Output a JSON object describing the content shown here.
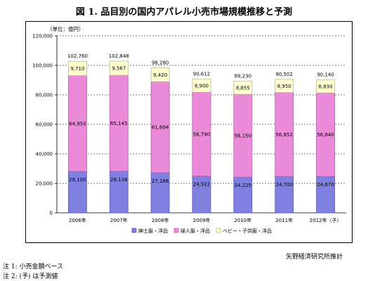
{
  "figure_title": "図 1.  品目別の国内アパレル小売市場規模推移と予測",
  "unit_label": "（単位：億円）",
  "source": "矢野経済研究所推計",
  "notes": [
    "注 1:  小売金額ベース",
    "注 2:  (予) は予測値"
  ],
  "colors": {
    "mens": "#8080e0",
    "womens": "#ea8ad8",
    "kids": "#ffffd0",
    "mens_dark": "#5a5ab8",
    "womens_dark": "#b85aa6",
    "kids_dark": "#b8b890"
  },
  "chart_data": {
    "type": "bar",
    "stacked": true,
    "categories": [
      "2006年",
      "2007年",
      "2008年",
      "2009年",
      "2010年",
      "2011年",
      "2012年（予）"
    ],
    "series": [
      {
        "name": "紳士服・洋品",
        "values": [
          28100,
          28136,
          27166,
          24922,
          24225,
          24700,
          24670
        ]
      },
      {
        "name": "婦人服・洋品",
        "values": [
          64950,
          65145,
          61694,
          56790,
          56150,
          56852,
          56640
        ]
      },
      {
        "name": "ベビー・子供服・洋品",
        "values": [
          9710,
          9567,
          9420,
          8900,
          8855,
          8950,
          8830
        ]
      }
    ],
    "totals": [
      102760,
      102848,
      98280,
      90612,
      89230,
      90502,
      90140
    ],
    "ylim": [
      0,
      120000
    ],
    "yticks": [
      0,
      20000,
      40000,
      60000,
      80000,
      100000,
      120000
    ],
    "ytick_labels": [
      "0",
      "20,000",
      "40,000",
      "60,000",
      "80,000",
      "100,000",
      "120,000"
    ],
    "grid": true,
    "legend_position": "bottom"
  }
}
